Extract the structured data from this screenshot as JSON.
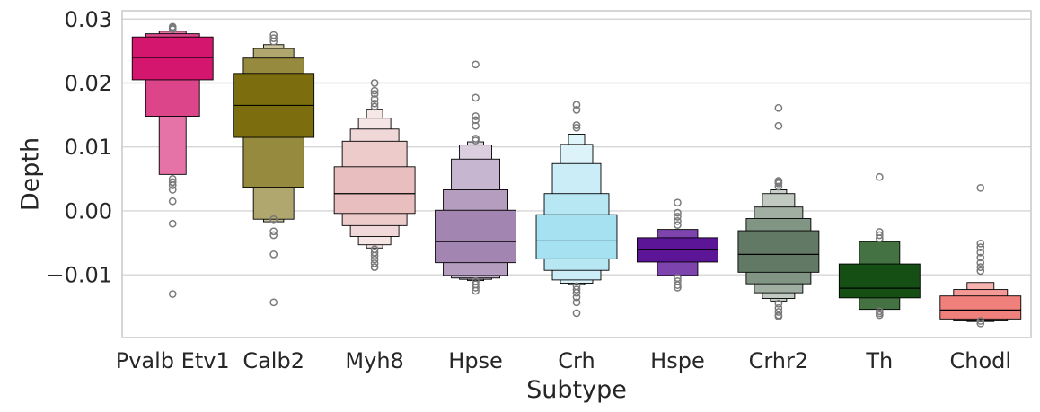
{
  "chart_data": {
    "type": "boxen",
    "xlabel": "Subtype",
    "ylabel": "Depth",
    "ylim": [
      -0.0198,
      0.0313
    ],
    "yticks": [
      {
        "value": 0.03,
        "label": "0.03"
      },
      {
        "value": 0.02,
        "label": "0.02"
      },
      {
        "value": 0.01,
        "label": "0.01"
      },
      {
        "value": 0.0,
        "label": "0.00"
      },
      {
        "value": -0.01,
        "label": "−0.01"
      }
    ],
    "grid": true,
    "categories": [
      {
        "label": "Pvalb Etv1",
        "color": "#d4166e",
        "median": 0.024,
        "boxes": [
          [
            0.0205,
            0.0272
          ],
          [
            0.0148,
            0.0277
          ],
          [
            0.0057,
            0.0281
          ]
        ],
        "outliers": [
          0.0288,
          0.0286,
          0.0284,
          0.005,
          0.0045,
          0.004,
          0.0033,
          0.0015,
          -0.002,
          -0.013
        ]
      },
      {
        "label": "Calb2",
        "color": "#7c6d0e",
        "median": 0.0165,
        "boxes": [
          [
            0.0115,
            0.0215
          ],
          [
            0.0037,
            0.0239
          ],
          [
            -0.0013,
            0.0254
          ],
          [
            -0.0017,
            0.026
          ]
        ],
        "outliers": [
          0.0275,
          0.027,
          0.0265,
          -0.0013,
          -0.0032,
          -0.0038,
          -0.0068,
          -0.0143
        ]
      },
      {
        "label": "Myh8",
        "color": "#e8bebe",
        "median": 0.0027,
        "boxes": [
          [
            -0.0004,
            0.0069
          ],
          [
            -0.0023,
            0.0109
          ],
          [
            -0.004,
            0.0128
          ],
          [
            -0.0053,
            0.0145
          ],
          [
            -0.0058,
            0.0159
          ]
        ],
        "outliers": [
          0.02,
          0.0188,
          0.0183,
          0.0175,
          0.0168,
          0.0163,
          -0.006,
          -0.0065,
          -0.007,
          -0.0076,
          -0.0082,
          -0.0088
        ]
      },
      {
        "label": "Hpse",
        "color": "#a285b0",
        "median": -0.0048,
        "boxes": [
          [
            -0.0081,
            0.0001
          ],
          [
            -0.0101,
            0.0033
          ],
          [
            -0.0105,
            0.0081
          ],
          [
            -0.0107,
            0.0103
          ],
          [
            -0.0109,
            0.0108
          ]
        ],
        "outliers": [
          0.0229,
          0.0177,
          0.0148,
          0.0142,
          0.0133,
          0.0113,
          0.011,
          -0.011,
          -0.0115,
          -0.012,
          -0.0125
        ]
      },
      {
        "label": "Crh",
        "color": "#a6e1f1",
        "median": -0.0047,
        "boxes": [
          [
            -0.0075,
            -0.0006
          ],
          [
            -0.0093,
            0.0027
          ],
          [
            -0.0108,
            0.0074
          ],
          [
            -0.0113,
            0.0104
          ],
          [
            -0.0115,
            0.012
          ]
        ],
        "outliers": [
          0.0166,
          0.0158,
          0.0134,
          0.013,
          -0.0118,
          -0.0123,
          -0.0128,
          -0.0135,
          -0.0143,
          -0.016
        ]
      },
      {
        "label": "Hspe",
        "color": "#5d1598",
        "median": -0.006,
        "boxes": [
          [
            -0.008,
            -0.0042
          ],
          [
            -0.0101,
            -0.0029
          ]
        ],
        "outliers": [
          0.0013,
          -0.0003,
          -0.0009,
          -0.0016,
          -0.0022,
          -0.0105,
          -0.011,
          -0.0116,
          -0.012
        ]
      },
      {
        "label": "Crhr2",
        "color": "#627a65",
        "median": -0.0068,
        "boxes": [
          [
            -0.0096,
            -0.0031
          ],
          [
            -0.0114,
            -0.0012
          ],
          [
            -0.0128,
            0.0006
          ],
          [
            -0.0137,
            0.0027
          ],
          [
            -0.0141,
            0.0033
          ]
        ],
        "outliers": [
          0.0161,
          0.0133,
          0.0047,
          0.0045,
          0.0043,
          0.0038,
          -0.0145,
          -0.0152,
          -0.0158,
          -0.0163,
          -0.0165
        ]
      },
      {
        "label": "Th",
        "color": "#154f14",
        "median": -0.0121,
        "boxes": [
          [
            -0.0136,
            -0.0083
          ],
          [
            -0.0154,
            -0.0048
          ]
        ],
        "outliers": [
          0.0053,
          -0.0033,
          -0.0038,
          -0.0043,
          -0.0157,
          -0.016,
          -0.0163
        ]
      },
      {
        "label": "Chodl",
        "color": "#f0807c",
        "median": -0.0155,
        "boxes": [
          [
            -0.0169,
            -0.0133
          ],
          [
            -0.0172,
            -0.0123
          ],
          [
            -0.0173,
            -0.0112
          ]
        ],
        "outliers": [
          0.0036,
          -0.0051,
          -0.0057,
          -0.0065,
          -0.0073,
          -0.0081,
          -0.0088,
          -0.0094,
          -0.0172,
          -0.0176
        ]
      }
    ]
  }
}
